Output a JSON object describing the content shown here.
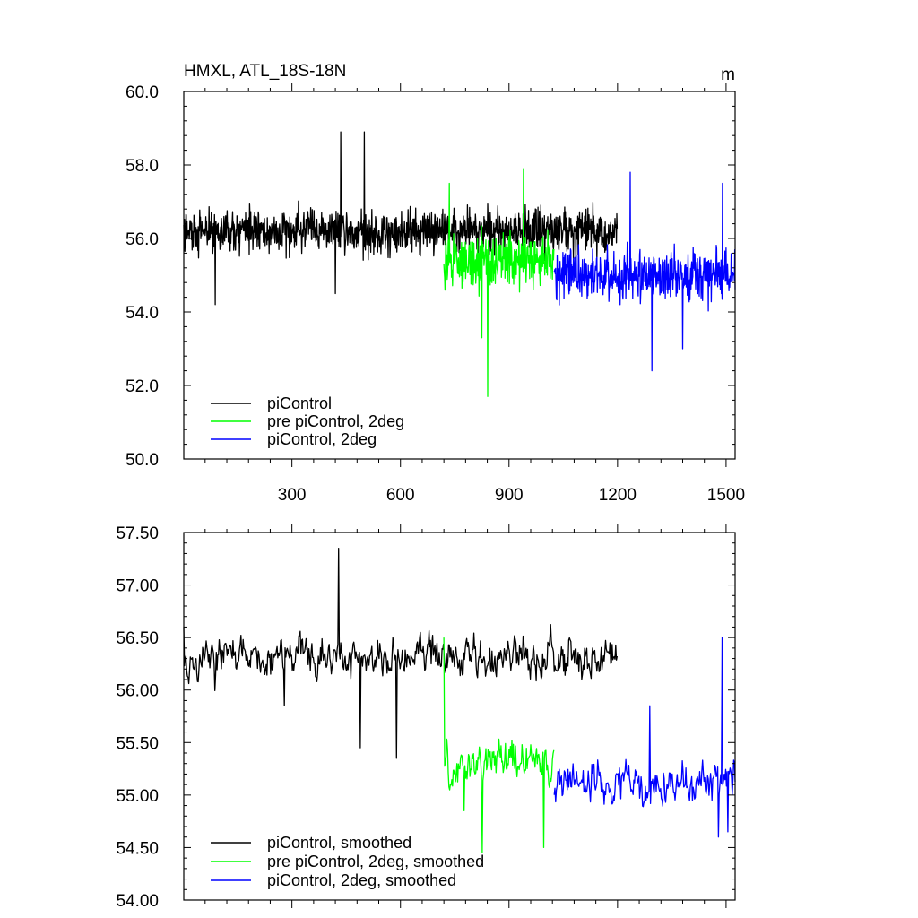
{
  "chart_data": [
    {
      "type": "line",
      "title": "HMXL, ATL_18S-18N",
      "units": "m",
      "xlim": [
        1,
        1525
      ],
      "ylim": [
        50.0,
        60.0
      ],
      "xticks": [
        300,
        600,
        900,
        1200,
        1500
      ],
      "xtick_labels": [
        "300",
        "600",
        "900",
        "1200",
        "1500"
      ],
      "yticks": [
        50.0,
        52.0,
        54.0,
        56.0,
        58.0,
        60.0
      ],
      "ytick_labels": [
        "50.0",
        "52.0",
        "54.0",
        "56.0",
        "58.0",
        "60.0"
      ],
      "legend_position": "bottom-left",
      "series": [
        {
          "name": "piControl",
          "color": "#000000",
          "x_start": 1,
          "x_end": 1200,
          "mean": 56.2,
          "spread": 0.75,
          "outliers": [
            [
              435,
              58.9
            ],
            [
              500,
              58.9
            ],
            [
              420,
              54.5
            ],
            [
              88,
              54.2
            ]
          ]
        },
        {
          "name": "pre piControl, 2deg",
          "color": "#00ff00",
          "x_start": 720,
          "x_end": 1025,
          "mean": 55.4,
          "spread": 0.9,
          "outliers": [
            [
              841,
              51.7
            ],
            [
              825,
              53.3
            ],
            [
              940,
              57.9
            ],
            [
              735,
              57.5
            ]
          ]
        },
        {
          "name": "piControl, 2deg",
          "color": "#0000ff",
          "x_start": 1025,
          "x_end": 1525,
          "mean": 55.0,
          "spread": 0.85,
          "outliers": [
            [
              1295,
              52.4
            ],
            [
              1235,
              57.8
            ],
            [
              1490,
              57.5
            ],
            [
              1380,
              53.0
            ]
          ]
        }
      ]
    },
    {
      "type": "line",
      "title": "",
      "xlim": [
        1,
        1525
      ],
      "ylim": [
        54.0,
        57.5
      ],
      "xticks": [
        300,
        600,
        900,
        1200,
        1500
      ],
      "yticks": [
        54.0,
        54.5,
        55.0,
        55.5,
        56.0,
        56.5,
        57.0,
        57.5
      ],
      "ytick_labels": [
        "54.00",
        "54.50",
        "55.00",
        "55.50",
        "56.00",
        "56.50",
        "57.00",
        "57.50"
      ],
      "legend_position": "bottom-left",
      "series": [
        {
          "name": "piControl, smoothed",
          "color": "#000000",
          "x_start": 1,
          "x_end": 1200,
          "mean": 56.3,
          "spread": 0.28,
          "outliers": [
            [
              430,
              57.35
            ],
            [
              280,
              55.85
            ],
            [
              590,
              55.35
            ],
            [
              490,
              55.45
            ],
            [
              1,
              56.6
            ]
          ]
        },
        {
          "name": "pre piControl, 2deg, smoothed",
          "color": "#00ff00",
          "x_start": 720,
          "x_end": 1025,
          "mean": 55.3,
          "spread": 0.3,
          "outliers": [
            [
              720,
              56.5
            ],
            [
              825,
              54.45
            ],
            [
              995,
              54.5
            ],
            [
              775,
              54.85
            ]
          ]
        },
        {
          "name": "piControl, 2deg, smoothed",
          "color": "#0000ff",
          "x_start": 1025,
          "x_end": 1525,
          "mean": 55.1,
          "spread": 0.3,
          "outliers": [
            [
              1490,
              56.5
            ],
            [
              1290,
              55.85
            ],
            [
              1480,
              54.6
            ],
            [
              1505,
              54.65
            ]
          ]
        }
      ]
    }
  ]
}
